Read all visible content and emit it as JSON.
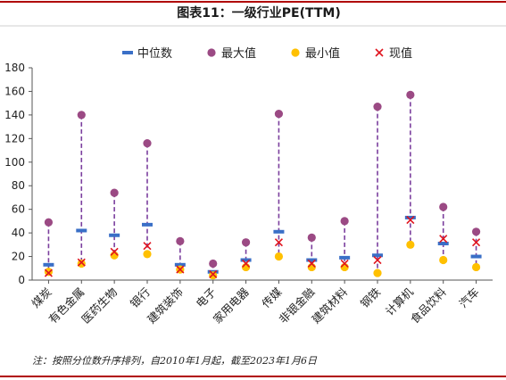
{
  "title": "图表11：一级行业PE(TTM)",
  "note": "注：按照分位数升序排列，自2010年1月起，截至2023年1月6日",
  "colors": {
    "median": "#3a6fc7",
    "max": "#9b4a84",
    "min": "#ffc000",
    "current": "#e0141e",
    "range_line": "#7b3f9e",
    "title_bar": "#b00000"
  },
  "legend": [
    {
      "key": "median",
      "label": "中位数"
    },
    {
      "key": "max",
      "label": "最大值"
    },
    {
      "key": "min",
      "label": "最小值"
    },
    {
      "key": "current",
      "label": "现值"
    }
  ],
  "chart_data": {
    "type": "scatter",
    "title": "图表11：一级行业PE(TTM)",
    "ylim": [
      0,
      180
    ],
    "yticks": [
      0,
      20,
      40,
      60,
      80,
      100,
      120,
      140,
      160,
      180
    ],
    "grid": false,
    "legend_position": "top",
    "categories": [
      "煤炭",
      "有色金属",
      "医药生物",
      "银行",
      "建筑装饰",
      "电子",
      "家用电器",
      "传媒",
      "非银金融",
      "建筑材料",
      "钢铁",
      "计算机",
      "食品饮料",
      "汽车"
    ],
    "series": [
      {
        "name": "中位数",
        "key": "median",
        "values": [
          13,
          42,
          38,
          47,
          13,
          7,
          17,
          41,
          17,
          19,
          21,
          53,
          31,
          20
        ]
      },
      {
        "name": "最大值",
        "key": "max",
        "values": [
          49,
          140,
          74,
          116,
          33,
          14,
          32,
          141,
          36,
          50,
          147,
          157,
          62,
          41
        ]
      },
      {
        "name": "最小值",
        "key": "min",
        "values": [
          7,
          14,
          21,
          22,
          9,
          4,
          11,
          20,
          11,
          11,
          6,
          30,
          17,
          11
        ]
      },
      {
        "name": "现值",
        "key": "current",
        "values": [
          6,
          15,
          24,
          29,
          9,
          5,
          14,
          32,
          14,
          14,
          17,
          51,
          35,
          32
        ]
      }
    ]
  }
}
